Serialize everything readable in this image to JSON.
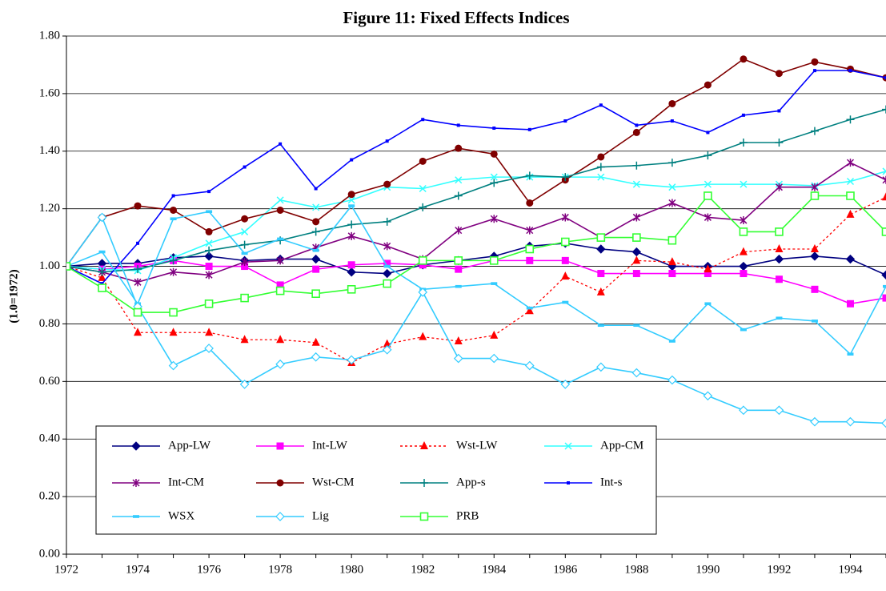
{
  "chart_data": {
    "type": "line",
    "title": "Figure 11:  Fixed Effects Indices",
    "y_label": "(1.0=1972)",
    "x": [
      1972,
      1973,
      1974,
      1975,
      1976,
      1977,
      1978,
      1979,
      1980,
      1981,
      1982,
      1983,
      1984,
      1985,
      1986,
      1987,
      1988,
      1989,
      1990,
      1991,
      1992,
      1993,
      1994,
      1995
    ],
    "xlim": [
      1972,
      1995
    ],
    "xticks": [
      1972,
      1974,
      1976,
      1978,
      1980,
      1982,
      1984,
      1986,
      1988,
      1990,
      1992,
      1994
    ],
    "ylim": [
      0,
      1.8
    ],
    "yticks": [
      {
        "value": 0,
        "label": "0.00"
      },
      {
        "value": 0.2,
        "label": "0.20"
      },
      {
        "value": 0.4,
        "label": "0.40"
      },
      {
        "value": 0.6,
        "label": "0.60"
      },
      {
        "value": 0.8,
        "label": "0.80"
      },
      {
        "value": 1.0,
        "label": "1.00"
      },
      {
        "value": 1.2,
        "label": "1.20"
      },
      {
        "value": 1.4,
        "label": "1.40"
      },
      {
        "value": 1.6,
        "label": "1.60"
      },
      {
        "value": 1.8,
        "label": "1.80"
      }
    ],
    "grid": true,
    "legend": "lower left",
    "series": [
      {
        "name": "App-LW",
        "color": "#000080",
        "marker": "diamond",
        "line_style": "solid",
        "values": [
          1.0,
          1.01,
          1.01,
          1.03,
          1.035,
          1.02,
          1.025,
          1.025,
          0.98,
          0.975,
          1.005,
          1.02,
          1.035,
          1.07,
          1.08,
          1.06,
          1.05,
          1.0,
          1.0,
          1.0,
          1.025,
          1.035,
          1.025,
          0.97
        ]
      },
      {
        "name": "Int-LW",
        "color": "#ff00ff",
        "marker": "square",
        "line_style": "solid",
        "values": [
          1.0,
          0.99,
          1.0,
          1.02,
          1.0,
          1.0,
          0.935,
          0.99,
          1.005,
          1.01,
          1.005,
          0.99,
          1.02,
          1.02,
          1.02,
          0.975,
          0.975,
          0.975,
          0.975,
          0.975,
          0.955,
          0.92,
          0.87,
          0.89
        ]
      },
      {
        "name": "Wst-LW",
        "color": "#ff0000",
        "marker": "triangle",
        "line_style": "dashed",
        "values": [
          1.0,
          0.96,
          0.77,
          0.77,
          0.77,
          0.745,
          0.745,
          0.735,
          0.665,
          0.73,
          0.755,
          0.74,
          0.76,
          0.845,
          0.965,
          0.91,
          1.02,
          1.015,
          0.99,
          1.05,
          1.06,
          1.06,
          1.18,
          1.24
        ]
      },
      {
        "name": "App-CM",
        "color": "#33ffff",
        "marker": "x",
        "line_style": "solid",
        "values": [
          1.0,
          0.99,
          0.985,
          1.03,
          1.08,
          1.12,
          1.23,
          1.205,
          1.23,
          1.275,
          1.27,
          1.3,
          1.31,
          1.31,
          1.31,
          1.31,
          1.285,
          1.275,
          1.285,
          1.285,
          1.285,
          1.28,
          1.295,
          1.33
        ]
      },
      {
        "name": "Int-CM",
        "color": "#800080",
        "marker": "asterisk",
        "line_style": "solid",
        "values": [
          1.0,
          0.98,
          0.945,
          0.98,
          0.97,
          1.015,
          1.02,
          1.065,
          1.105,
          1.07,
          1.025,
          1.125,
          1.165,
          1.125,
          1.17,
          1.1,
          1.17,
          1.22,
          1.17,
          1.16,
          1.275,
          1.275,
          1.36,
          1.3
        ]
      },
      {
        "name": "Wst-CM",
        "color": "#800000",
        "marker": "circle",
        "line_style": "solid",
        "values": [
          1.0,
          1.17,
          1.21,
          1.195,
          1.12,
          1.165,
          1.195,
          1.155,
          1.25,
          1.285,
          1.365,
          1.41,
          1.39,
          1.22,
          1.3,
          1.38,
          1.465,
          1.565,
          1.63,
          1.72,
          1.67,
          1.71,
          1.685,
          1.655
        ]
      },
      {
        "name": "App-s",
        "color": "#008080",
        "marker": "plus",
        "line_style": "solid",
        "values": [
          1.0,
          0.98,
          0.99,
          1.02,
          1.055,
          1.075,
          1.09,
          1.12,
          1.145,
          1.155,
          1.205,
          1.245,
          1.29,
          1.315,
          1.31,
          1.345,
          1.35,
          1.36,
          1.385,
          1.43,
          1.43,
          1.47,
          1.51,
          1.545
        ]
      },
      {
        "name": "Int-s",
        "color": "#0000ff",
        "marker": "dot",
        "line_style": "solid",
        "values": [
          1.0,
          0.94,
          1.08,
          1.245,
          1.26,
          1.345,
          1.425,
          1.27,
          1.37,
          1.435,
          1.51,
          1.49,
          1.48,
          1.475,
          1.505,
          1.56,
          1.49,
          1.505,
          1.465,
          1.525,
          1.54,
          1.68,
          1.68,
          1.655
        ]
      },
      {
        "name": "WSX",
        "color": "#33ccff",
        "marker": "dash",
        "line_style": "solid",
        "values": [
          1.0,
          1.05,
          0.87,
          1.165,
          1.19,
          1.045,
          1.095,
          1.055,
          1.21,
          1.0,
          0.92,
          0.93,
          0.94,
          0.855,
          0.875,
          0.795,
          0.795,
          0.74,
          0.87,
          0.78,
          0.82,
          0.81,
          0.695,
          0.93
        ]
      },
      {
        "name": "Lig",
        "color": "#33ccff",
        "marker": "open-diamond",
        "line_style": "solid",
        "values": [
          1.0,
          1.17,
          0.86,
          0.655,
          0.715,
          0.59,
          0.66,
          0.685,
          0.675,
          0.71,
          0.91,
          0.68,
          0.68,
          0.655,
          0.59,
          0.65,
          0.63,
          0.605,
          0.55,
          0.5,
          0.5,
          0.46,
          0.46,
          0.455
        ]
      },
      {
        "name": "PRB",
        "color": "#33ff33",
        "marker": "open-square",
        "line_style": "solid",
        "values": [
          1.0,
          0.925,
          0.84,
          0.84,
          0.87,
          0.89,
          0.915,
          0.905,
          0.92,
          0.94,
          1.02,
          1.02,
          1.02,
          1.06,
          1.085,
          1.1,
          1.1,
          1.09,
          1.245,
          1.12,
          1.12,
          1.245,
          1.245,
          1.12
        ]
      }
    ]
  }
}
